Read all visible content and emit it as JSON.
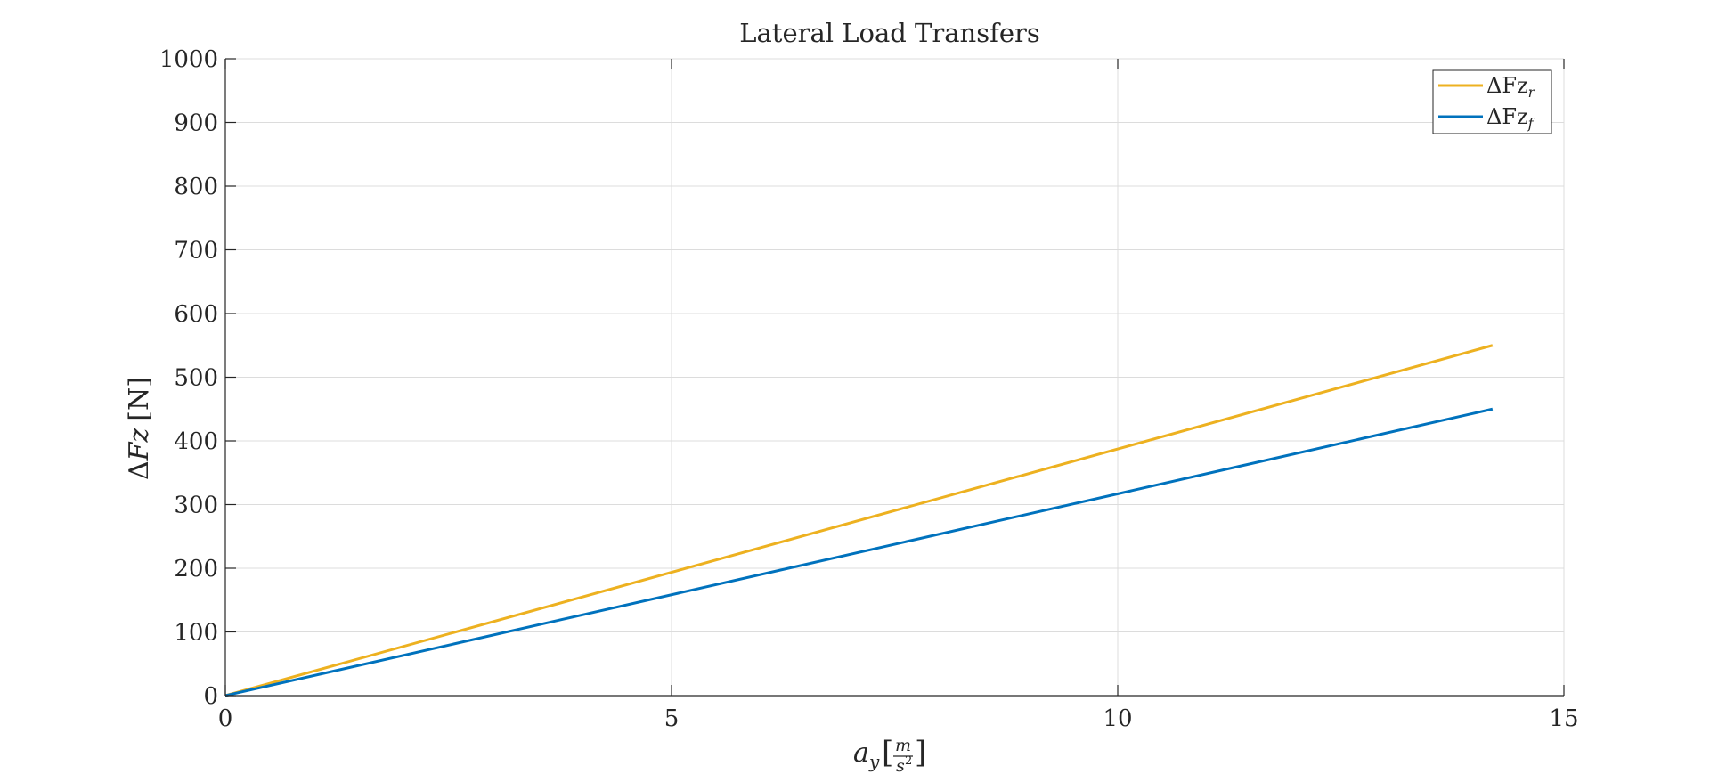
{
  "chart_data": {
    "type": "line",
    "title": "Lateral Load Transfers",
    "xlabel": {
      "main": "a",
      "sub": "y",
      "unit_num": "m",
      "unit_den": "s",
      "unit_den_exp": "2"
    },
    "ylabel": {
      "delta": "Δ",
      "var": "Fz",
      "unit": "[N]"
    },
    "xlim": [
      0,
      15
    ],
    "ylim": [
      0,
      1000
    ],
    "xticks": [
      0,
      5,
      10,
      15
    ],
    "yticks": [
      0,
      100,
      200,
      300,
      400,
      500,
      600,
      700,
      800,
      900,
      1000
    ],
    "grid": true,
    "legend_position": "top-right",
    "series": [
      {
        "name": "ΔFz",
        "subscript": "r",
        "color": "#EDB120",
        "x": [
          0,
          14.2
        ],
        "y": [
          0,
          550
        ]
      },
      {
        "name": "ΔFz",
        "subscript": "f",
        "color": "#0072BD",
        "x": [
          0,
          14.2
        ],
        "y": [
          0,
          450
        ]
      }
    ]
  }
}
